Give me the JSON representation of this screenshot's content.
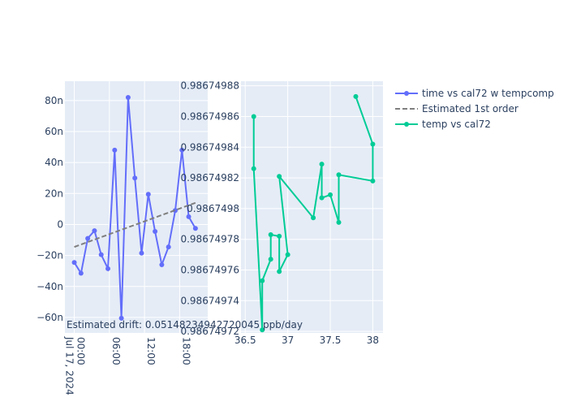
{
  "colors": {
    "plot_bg": "#E5ECF6",
    "grid": "#ffffff",
    "series_time": "#636EFA",
    "series_drift": "#7f7f7f",
    "series_temp": "#00CC96",
    "text": "#2a3f5f"
  },
  "annotation": "Estimated drift:  0.05148234942720045 ppb/day",
  "legend": [
    "time vs cal72 w tempcomp",
    "Estimated 1st order",
    "temp vs cal72"
  ],
  "chart_data": [
    {
      "type": "line",
      "xaxis_type": "date",
      "x_tick_labels": [
        "00:00",
        "06:00",
        "12:00",
        "18:00"
      ],
      "x_tick_first_sub": "Jul 17, 2024",
      "x_tick_hours": [
        0,
        6,
        12,
        18
      ],
      "xlim_hours": [
        -1.6,
        22.8
      ],
      "y_tick_labels": [
        "−60n",
        "−40n",
        "−20n",
        "0",
        "20n",
        "40n",
        "60n",
        "80n"
      ],
      "y_tick_values": [
        -60,
        -40,
        -20,
        0,
        20,
        40,
        60,
        80
      ],
      "ylim": [
        -70,
        92.5
      ],
      "series": [
        {
          "name": "time vs cal72 w tempcomp",
          "mode": "lines+markers",
          "x_hours": [
            0,
            1.15,
            2.3,
            3.45,
            4.6,
            5.75,
            6.9,
            8.05,
            9.2,
            10.35,
            11.5,
            12.65,
            13.8,
            14.95,
            16.1,
            17.25,
            18.4,
            19.55,
            20.7
          ],
          "values": [
            -24.5,
            -31.5,
            -9,
            -4,
            -19.5,
            -28.5,
            48,
            -60.5,
            82,
            30,
            -18.5,
            19.5,
            -4.5,
            -26,
            -14.5,
            9,
            48,
            5,
            -2.5
          ]
        },
        {
          "name": "Estimated 1st order",
          "mode": "lines-dashed",
          "x_hours": [
            0,
            20.7
          ],
          "values": [
            -14.5,
            14
          ]
        }
      ]
    },
    {
      "type": "line",
      "x_tick_labels": [
        "36.5",
        "37",
        "37.5",
        "38"
      ],
      "x_tick_values": [
        36.5,
        37,
        37.5,
        38
      ],
      "xlim": [
        36.45,
        38.12
      ],
      "y_tick_labels": [
        "0.986749720",
        "0.986749740",
        "0.986749760",
        "0.986749780",
        "0.986749800",
        "0.986749820",
        "0.986749840",
        "0.986749860",
        "0.986749880"
      ],
      "y_tick_text": [
        "0.9867497​2",
        "0.98674974",
        "0.98674976",
        "0.98674978",
        "0.9867498",
        "0.98674982",
        "0.98674984",
        "0.98674986",
        "0.98674988"
      ],
      "y_tick_values": [
        72,
        74,
        76,
        78,
        80,
        82,
        84,
        86,
        88
      ],
      "ylim": [
        71.9,
        88.3
      ],
      "y_units_note_value_offset": "values are ×1e-8 offsets from 0.9867497 as printed on tick labels",
      "series": [
        {
          "name": "temp vs cal72",
          "mode": "lines+markers",
          "x": [
            36.6,
            36.6,
            36.7,
            36.7,
            36.8,
            36.8,
            36.9,
            36.9,
            37.0,
            36.9,
            37.3,
            37.4,
            37.4,
            37.5,
            37.6,
            37.6,
            38.0,
            38.0,
            37.8
          ],
          "y": [
            86.0,
            82.6,
            72.1,
            75.3,
            76.7,
            78.3,
            78.2,
            75.9,
            77.0,
            82.1,
            79.4,
            82.9,
            80.7,
            80.9,
            79.1,
            82.2,
            81.8,
            84.2,
            87.3
          ]
        }
      ]
    }
  ]
}
